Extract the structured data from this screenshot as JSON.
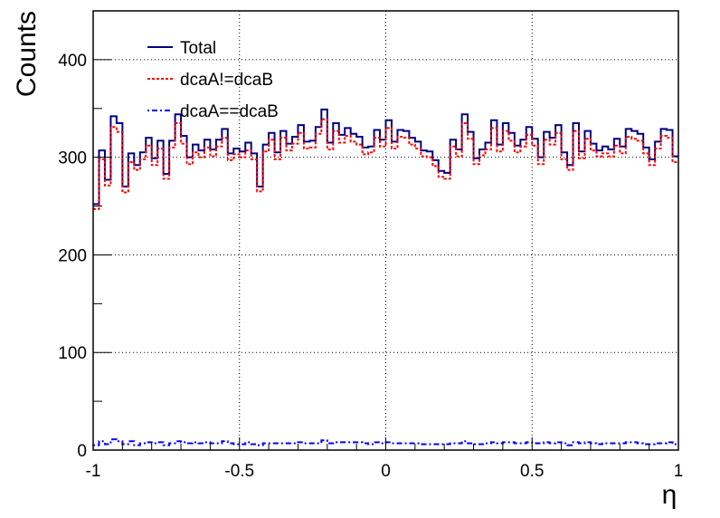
{
  "chart_data": {
    "type": "line",
    "ylabel": "Counts",
    "xlabel": "η",
    "xlim": [
      -1,
      1
    ],
    "ylim": [
      0,
      450
    ],
    "grid": true,
    "legend_position": "top-left",
    "x_ticks": [
      -1,
      -0.5,
      0,
      0.5,
      1
    ],
    "x_tick_labels": [
      "-1",
      "-0.5",
      "0",
      "0.5",
      "1"
    ],
    "y_ticks": [
      0,
      100,
      200,
      300,
      400
    ],
    "y_tick_labels": [
      "0",
      "100",
      "200",
      "300",
      "400"
    ],
    "bin_width": 0.02,
    "bin_edges_start": -1,
    "series": [
      {
        "name": "Total",
        "color": "#000080",
        "style": "solid",
        "values": [
          252,
          307,
          277,
          342,
          335,
          270,
          304,
          292,
          305,
          320,
          299,
          317,
          283,
          317,
          344,
          322,
          300,
          313,
          307,
          318,
          308,
          318,
          329,
          304,
          309,
          306,
          315,
          304,
          270,
          313,
          325,
          305,
          327,
          314,
          321,
          333,
          316,
          317,
          331,
          349,
          315,
          335,
          323,
          330,
          324,
          321,
          310,
          311,
          328,
          318,
          338,
          316,
          328,
          327,
          320,
          316,
          307,
          306,
          297,
          286,
          284,
          318,
          308,
          344,
          326,
          299,
          308,
          315,
          338,
          313,
          335,
          325,
          312,
          318,
          331,
          319,
          300,
          326,
          320,
          333,
          305,
          292,
          335,
          306,
          327,
          314,
          307,
          311,
          308,
          319,
          311,
          329,
          327,
          324,
          310,
          298,
          316,
          329,
          328,
          301
        ]
      },
      {
        "name": "dcaA!=dcaB",
        "color": "#ff0000",
        "style": "dotted",
        "values": [
          247,
          298,
          271,
          331,
          326,
          264,
          295,
          287,
          298,
          312,
          292,
          309,
          278,
          310,
          335,
          314,
          293,
          305,
          300,
          310,
          301,
          311,
          320,
          297,
          303,
          300,
          307,
          298,
          265,
          306,
          318,
          298,
          320,
          307,
          314,
          325,
          309,
          310,
          324,
          339,
          308,
          327,
          315,
          322,
          316,
          313,
          303,
          305,
          320,
          311,
          330,
          309,
          321,
          320,
          313,
          309,
          301,
          300,
          291,
          280,
          278,
          311,
          301,
          335,
          319,
          293,
          302,
          308,
          330,
          306,
          327,
          317,
          305,
          311,
          323,
          312,
          293,
          318,
          313,
          325,
          298,
          287,
          327,
          299,
          319,
          307,
          301,
          304,
          301,
          312,
          304,
          321,
          319,
          317,
          304,
          292,
          309,
          322,
          320,
          295
        ]
      },
      {
        "name": "dcaA==dcaB",
        "color": "#0000ff",
        "style": "dashdot",
        "values": [
          5,
          9,
          6,
          11,
          9,
          6,
          9,
          5,
          7,
          8,
          7,
          8,
          5,
          7,
          9,
          8,
          7,
          8,
          7,
          8,
          7,
          7,
          9,
          7,
          6,
          6,
          8,
          6,
          5,
          7,
          7,
          7,
          7,
          7,
          7,
          8,
          7,
          7,
          7,
          10,
          7,
          8,
          8,
          8,
          8,
          8,
          7,
          6,
          8,
          7,
          8,
          7,
          7,
          7,
          7,
          7,
          6,
          6,
          6,
          6,
          6,
          7,
          7,
          9,
          7,
          6,
          6,
          7,
          8,
          7,
          8,
          8,
          7,
          7,
          8,
          7,
          7,
          8,
          7,
          8,
          7,
          5,
          8,
          7,
          8,
          7,
          6,
          7,
          7,
          7,
          7,
          8,
          8,
          7,
          6,
          6,
          7,
          7,
          8,
          6
        ]
      }
    ]
  }
}
